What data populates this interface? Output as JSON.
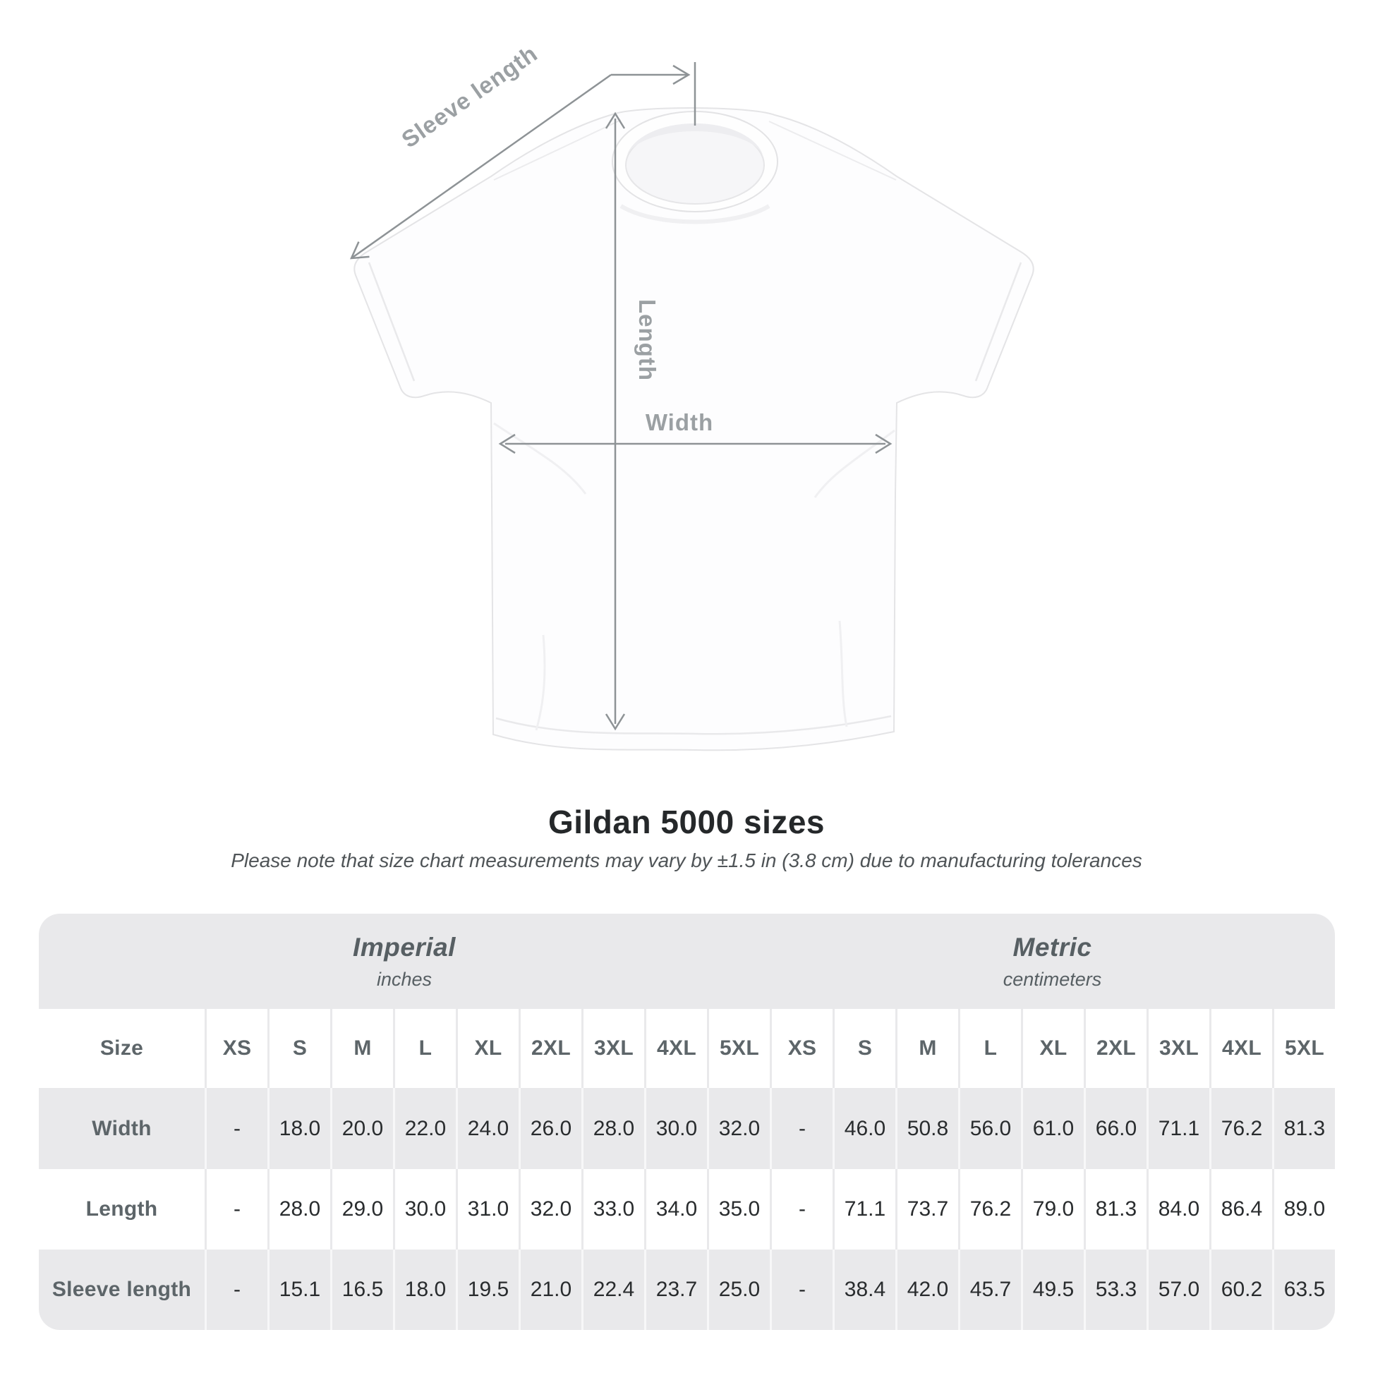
{
  "diagram": {
    "sleeve_length_label": "Sleeve length",
    "length_label": "Length",
    "width_label": "Width"
  },
  "header": {
    "title": "Gildan 5000 sizes",
    "subtitle": "Please note that size chart measurements may vary by ±1.5 in (3.8 cm) due to manufacturing tolerances"
  },
  "table": {
    "unit_groups": [
      {
        "label": "Imperial",
        "sublabel": "inches"
      },
      {
        "label": "Metric",
        "sublabel": "centimeters"
      }
    ],
    "size_header": "Size",
    "sizes": [
      "XS",
      "S",
      "M",
      "L",
      "XL",
      "2XL",
      "3XL",
      "4XL",
      "5XL"
    ],
    "rows": [
      {
        "label": "Width",
        "imperial": [
          "-",
          "18.0",
          "20.0",
          "22.0",
          "24.0",
          "26.0",
          "28.0",
          "30.0",
          "32.0"
        ],
        "metric": [
          "-",
          "46.0",
          "50.8",
          "56.0",
          "61.0",
          "66.0",
          "71.1",
          "76.2",
          "81.3"
        ]
      },
      {
        "label": "Length",
        "imperial": [
          "-",
          "28.0",
          "29.0",
          "30.0",
          "31.0",
          "32.0",
          "33.0",
          "34.0",
          "35.0"
        ],
        "metric": [
          "-",
          "71.1",
          "73.7",
          "76.2",
          "79.0",
          "81.3",
          "84.0",
          "86.4",
          "89.0"
        ]
      },
      {
        "label": "Sleeve length",
        "imperial": [
          "-",
          "15.1",
          "16.5",
          "18.0",
          "19.5",
          "21.0",
          "22.4",
          "23.7",
          "25.0"
        ],
        "metric": [
          "-",
          "38.4",
          "42.0",
          "45.7",
          "49.5",
          "53.3",
          "57.0",
          "60.2",
          "63.5"
        ]
      }
    ]
  },
  "colors": {
    "table_band_gray": "#e9e9eb",
    "row_white": "#ffffff",
    "header_text": "#5d6569",
    "group_header_text": "#575f63",
    "value_text": "#292c2e",
    "title_text": "#25282a",
    "subtitle_text": "#4f5457",
    "diagram_label": "#9ba0a3",
    "diagram_line": "#8e9396"
  },
  "chart_data": {
    "type": "table",
    "title": "Gildan 5000 sizes",
    "note": "Please note that size chart measurements may vary by ±1.5 in (3.8 cm) due to manufacturing tolerances",
    "columns": [
      "XS",
      "S",
      "M",
      "L",
      "XL",
      "2XL",
      "3XL",
      "4XL",
      "5XL"
    ],
    "units": [
      "inches",
      "centimeters"
    ],
    "rows": [
      {
        "measurement": "Width",
        "inches": [
          null,
          18.0,
          20.0,
          22.0,
          24.0,
          26.0,
          28.0,
          30.0,
          32.0
        ],
        "centimeters": [
          null,
          46.0,
          50.8,
          56.0,
          61.0,
          66.0,
          71.1,
          76.2,
          81.3
        ]
      },
      {
        "measurement": "Length",
        "inches": [
          null,
          28.0,
          29.0,
          30.0,
          31.0,
          32.0,
          33.0,
          34.0,
          35.0
        ],
        "centimeters": [
          null,
          71.1,
          73.7,
          76.2,
          79.0,
          81.3,
          84.0,
          86.4,
          89.0
        ]
      },
      {
        "measurement": "Sleeve length",
        "inches": [
          null,
          15.1,
          16.5,
          18.0,
          19.5,
          21.0,
          22.4,
          23.7,
          25.0
        ],
        "centimeters": [
          null,
          38.4,
          42.0,
          45.7,
          49.5,
          53.3,
          57.0,
          60.2,
          63.5
        ]
      }
    ],
    "legend_position": "none",
    "grid": false
  }
}
